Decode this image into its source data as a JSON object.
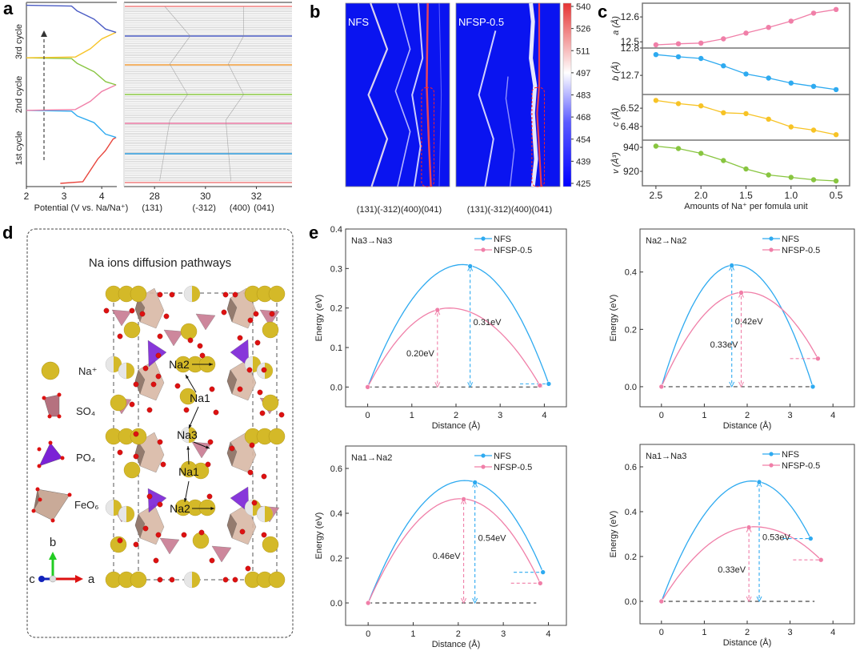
{
  "figure": {
    "panel_labels": [
      "a",
      "b",
      "c",
      "d",
      "e"
    ]
  },
  "chart_data": [
    {
      "id": "a-voltage",
      "type": "line",
      "xlabel": "Potential (V vs. Na/Na⁺)",
      "xticks": [
        "2",
        "3",
        "4"
      ],
      "xlim": [
        2,
        4.4
      ],
      "cycle_labels": [
        "1st cycle",
        "2nd cycle",
        "3rd cycle"
      ],
      "series": [
        {
          "name": "charge-1",
          "color": "#e8453c",
          "x": [
            2.9,
            3.5,
            3.7,
            3.9,
            4.1,
            4.3,
            4.38
          ],
          "y": [
            0.0,
            0.01,
            0.08,
            0.15,
            0.2,
            0.27,
            0.28
          ]
        },
        {
          "name": "discharge-1",
          "color": "#2eaaf0",
          "x": [
            4.38,
            4.1,
            3.8,
            3.35,
            3.2,
            2.0
          ],
          "y": [
            0.28,
            0.3,
            0.37,
            0.41,
            0.44,
            0.445
          ]
        },
        {
          "name": "charge-2",
          "color": "#f07fa8",
          "x": [
            2.0,
            3.3,
            3.7,
            4.0,
            4.38
          ],
          "y": [
            0.445,
            0.45,
            0.5,
            0.56,
            0.6
          ]
        },
        {
          "name": "discharge-2",
          "color": "#88c540",
          "x": [
            4.38,
            4.1,
            3.8,
            3.35,
            3.2,
            2.0
          ],
          "y": [
            0.6,
            0.62,
            0.68,
            0.73,
            0.76,
            0.765
          ]
        },
        {
          "name": "charge-3",
          "color": "#f7c325",
          "x": [
            2.0,
            3.3,
            3.7,
            4.0,
            4.38
          ],
          "y": [
            0.765,
            0.77,
            0.82,
            0.88,
            0.92
          ]
        },
        {
          "name": "discharge-3",
          "color": "#4a5bc4",
          "x": [
            4.38,
            4.1,
            3.8,
            3.35,
            3.2,
            2.0
          ],
          "y": [
            0.92,
            0.94,
            1.0,
            1.05,
            1.08,
            1.085
          ]
        }
      ],
      "arrow": "upward dashed arrow"
    },
    {
      "id": "a-xrd",
      "type": "line",
      "description": "stacked in-situ XRD patterns",
      "xticks": [
        "28",
        "30",
        "32"
      ],
      "xlim": [
        26.8,
        33.4
      ],
      "peak_labels": [
        "(131)",
        "(-312)",
        "(400)",
        "(041)"
      ],
      "highlight_colors": [
        "#f07f7f",
        "#2e9de0",
        "#f07fa8",
        "#88c540",
        "#f7a23c",
        "#4a5bc4",
        "#f07f7f"
      ]
    },
    {
      "id": "b-contour",
      "type": "heatmap",
      "panels": [
        "NFS",
        "NFSP-0.5"
      ],
      "xlabels": [
        "(131)(-312)(400)(041)",
        "(131)(-312)(400)(041)"
      ],
      "colorbar": {
        "min": 425,
        "max": 540,
        "ticks": [
          "540",
          "526",
          "511",
          "497",
          "483",
          "468",
          "454",
          "439",
          "425"
        ],
        "colors": [
          "#0000ff",
          "#ffffff",
          "#e63333"
        ]
      }
    },
    {
      "id": "c-lattice",
      "type": "line",
      "xlabel": "Amounts of Na⁺ per fomula unit",
      "x": [
        2.5,
        2.25,
        2.0,
        1.75,
        1.5,
        1.25,
        1.0,
        0.75,
        0.5
      ],
      "xticks": [
        "2.5",
        "2.0",
        "1.5",
        "1.0",
        "0.5"
      ],
      "xlim": [
        2.65,
        0.35
      ],
      "subplots": [
        {
          "ylabel": "a (Å)",
          "color": "#f07fa8",
          "yticks": [
            "12.5",
            "12.6"
          ],
          "tickvals": [
            12.5,
            12.6
          ],
          "ylim": [
            12.475,
            12.655
          ],
          "values": [
            12.488,
            12.492,
            12.495,
            12.512,
            12.535,
            12.558,
            12.583,
            12.615,
            12.63
          ]
        },
        {
          "ylabel": "b (Å)",
          "color": "#2eaaf0",
          "yticks": [
            "12.8",
            "12.7"
          ],
          "tickvals": [
            12.8,
            12.7
          ],
          "ylim": [
            12.63,
            12.8
          ],
          "values": [
            12.776,
            12.768,
            12.762,
            12.735,
            12.705,
            12.69,
            12.672,
            12.66,
            12.648
          ]
        },
        {
          "ylabel": "c (Å)",
          "color": "#f7c325",
          "yticks": [
            "6.52",
            "6.48"
          ],
          "tickvals": [
            6.52,
            6.48
          ],
          "ylim": [
            6.45,
            6.55
          ],
          "values": [
            6.537,
            6.53,
            6.525,
            6.51,
            6.508,
            6.496,
            6.479,
            6.472,
            6.462
          ]
        },
        {
          "ylabel": "v (Å³)",
          "color": "#88c540",
          "yticks": [
            "940",
            "920"
          ],
          "tickvals": [
            940,
            920
          ],
          "ylim": [
            908,
            946
          ],
          "values": [
            941,
            939,
            935,
            929,
            922,
            917,
            915,
            913,
            912
          ]
        }
      ]
    },
    {
      "id": "e-na3-na3",
      "type": "line",
      "path_label": "Na3→Na3",
      "xlabel": "Distance (Å)",
      "ylabel": "Energy (eV)",
      "xlim": [
        -0.5,
        4.5
      ],
      "ylim": [
        -0.05,
        0.4
      ],
      "xticks": [
        0,
        1,
        2,
        3,
        4
      ],
      "yticks": [
        0.0,
        0.1,
        0.2,
        0.3,
        0.4
      ],
      "ytick_labels": [
        "0.0",
        "0.1",
        "0.2",
        "0.3",
        "0.4"
      ],
      "series": [
        {
          "name": "NFS",
          "color": "#2eaaf0",
          "points": [
            [
              0,
              0
            ],
            [
              2.32,
              0.306
            ],
            [
              4.1,
              0.008
            ]
          ],
          "peak_x": 2.15,
          "peak_y": 0.31
        },
        {
          "name": "NFSP-0.5",
          "color": "#f07fa8",
          "points": [
            [
              0,
              0
            ],
            [
              1.58,
              0.195
            ],
            [
              3.9,
              0.004
            ]
          ],
          "peak_x": 1.85,
          "peak_y": 0.2
        }
      ],
      "annotations": [
        {
          "text": "0.31eV",
          "series": "NFS",
          "x": 2.32,
          "y0": 0,
          "y1": 0.306
        },
        {
          "text": "0.20eV",
          "series": "NFSP-0.5",
          "x": 1.58,
          "y0": 0,
          "y1": 0.195
        }
      ]
    },
    {
      "id": "e-na2-na2",
      "type": "line",
      "path_label": "Na2→Na2",
      "xlabel": "Distance (Å)",
      "ylabel": "Energy (eV)",
      "xlim": [
        -0.5,
        4.5
      ],
      "ylim": [
        -0.07,
        0.55
      ],
      "xticks": [
        0,
        1,
        2,
        3,
        4
      ],
      "yticks": [
        0.0,
        0.2,
        0.4
      ],
      "ytick_labels": [
        "0.0",
        "0.2",
        "0.4"
      ],
      "series": [
        {
          "name": "NFS",
          "color": "#2eaaf0",
          "points": [
            [
              0,
              0
            ],
            [
              1.64,
              0.423
            ],
            [
              3.53,
              0.0
            ]
          ],
          "peak_x": 1.72,
          "peak_y": 0.425
        },
        {
          "name": "NFSP-0.5",
          "color": "#f07fa8",
          "points": [
            [
              0,
              0
            ],
            [
              1.86,
              0.328
            ],
            [
              3.65,
              0.098
            ]
          ],
          "peak_x": 1.95,
          "peak_y": 0.33
        }
      ],
      "annotations": [
        {
          "text": "0.42eV",
          "series": "NFS",
          "x": 1.64,
          "y0": 0,
          "y1": 0.423
        },
        {
          "text": "0.33eV",
          "series": "NFSP-0.5",
          "x": 1.86,
          "y0": 0,
          "y1": 0.328
        }
      ]
    },
    {
      "id": "e-na1-na2",
      "type": "line",
      "path_label": "Na1→Na2",
      "xlabel": "Distance (Å)",
      "ylabel": "Energy (eV)",
      "xlim": [
        -0.5,
        4.4
      ],
      "ylim": [
        -0.1,
        0.7
      ],
      "xticks": [
        0,
        1,
        2,
        3,
        4
      ],
      "yticks": [
        0.0,
        0.2,
        0.4,
        0.6
      ],
      "ytick_labels": [
        "0.0",
        "0.2",
        "0.4",
        "0.6"
      ],
      "series": [
        {
          "name": "NFS",
          "color": "#2eaaf0",
          "points": [
            [
              0,
              0
            ],
            [
              2.37,
              0.538
            ],
            [
              3.88,
              0.137
            ]
          ],
          "peak_x": 2.15,
          "peak_y": 0.546
        },
        {
          "name": "NFSP-0.5",
          "color": "#f07fa8",
          "points": [
            [
              0,
              0
            ],
            [
              2.12,
              0.463
            ],
            [
              3.82,
              0.088
            ]
          ],
          "peak_x": 2.05,
          "peak_y": 0.465
        }
      ],
      "annotations": [
        {
          "text": "0.54eV",
          "series": "NFS",
          "x": 2.37,
          "y0": 0,
          "y1": 0.538
        },
        {
          "text": "0.46eV",
          "series": "NFSP-0.5",
          "x": 2.12,
          "y0": 0,
          "y1": 0.463
        }
      ]
    },
    {
      "id": "e-na1-na3",
      "type": "line",
      "path_label": "Na1→Na3",
      "xlabel": "Distance (Å)",
      "ylabel": "Energy (eV)",
      "xlim": [
        -0.5,
        4.5
      ],
      "ylim": [
        -0.1,
        0.7
      ],
      "xticks": [
        0,
        1,
        2,
        3,
        4
      ],
      "yticks": [
        0.0,
        0.2,
        0.4,
        0.6
      ],
      "ytick_labels": [
        "0.0",
        "0.2",
        "0.4",
        "0.6"
      ],
      "series": [
        {
          "name": "NFS",
          "color": "#2eaaf0",
          "points": [
            [
              0,
              0
            ],
            [
              2.28,
              0.532
            ],
            [
              3.48,
              0.28
            ]
          ],
          "peak_x": 2.12,
          "peak_y": 0.537
        },
        {
          "name": "NFSP-0.5",
          "color": "#f07fa8",
          "points": [
            [
              0,
              0
            ],
            [
              2.04,
              0.33
            ],
            [
              3.72,
              0.185
            ]
          ],
          "peak_x": 2.15,
          "peak_y": 0.333
        }
      ],
      "annotations": [
        {
          "text": "0.53eV",
          "series": "NFS",
          "x": 2.28,
          "y0": 0,
          "y1": 0.532
        },
        {
          "text": "0.33eV",
          "series": "NFSP-0.5",
          "x": 2.04,
          "y0": 0,
          "y1": 0.33
        }
      ]
    }
  ],
  "panel_d": {
    "title": "Na ions diffusion pathways",
    "legend": [
      {
        "label": "Na⁺",
        "shape": "sphere",
        "color": "#d4b928"
      },
      {
        "label": "SO₄",
        "shape": "tetrahedron",
        "color": "#b5717f"
      },
      {
        "label": "PO₄",
        "shape": "tetrahedron",
        "color": "#7b22d6"
      },
      {
        "label": "FeO₆",
        "shape": "octahedron",
        "color": "#c9aa98"
      }
    ],
    "axes": {
      "b": "b",
      "a": "a",
      "c": "c",
      "b_color": "#22cc22",
      "a_color": "#dd1111",
      "c_color": "#1122bb"
    },
    "site_labels": [
      "Na2",
      "Na1",
      "Na3",
      "Na1",
      "Na2"
    ]
  }
}
